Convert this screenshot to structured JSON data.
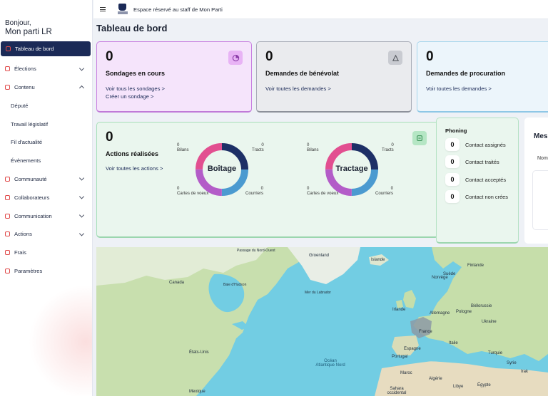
{
  "sidebar": {
    "greeting": "Bonjour,",
    "party_name": "Mon parti LR",
    "items": [
      {
        "label": "Tableau de bord",
        "active": true,
        "icon": "dashboard-icon"
      },
      {
        "label": "Élections",
        "expand": "down",
        "icon": "ballot-icon"
      },
      {
        "label": "Contenu",
        "expand": "up",
        "icon": "person-icon"
      },
      {
        "label": "Député",
        "sub": true
      },
      {
        "label": "Travail législatif",
        "sub": true
      },
      {
        "label": "Fil d'actualité",
        "sub": true
      },
      {
        "label": "Évènements",
        "sub": true
      },
      {
        "label": "Communauté",
        "expand": "down",
        "icon": "megaphone-icon"
      },
      {
        "label": "Collaborateurs",
        "expand": "down",
        "icon": "megaphone-icon"
      },
      {
        "label": "Communication",
        "expand": "down",
        "icon": "chat-icon"
      },
      {
        "label": "Actions",
        "expand": "down",
        "icon": "grid-icon"
      },
      {
        "label": "Frais",
        "icon": "wallet-icon"
      },
      {
        "label": "Paramètres",
        "icon": "gear-icon"
      }
    ]
  },
  "topbar": {
    "title": "Espace réservé au staff de Mon Parti",
    "logo_text": "Mon Parti"
  },
  "page_title": "Tableau de bord",
  "cards": {
    "sondages": {
      "count": "0",
      "title": "Sondages en cours",
      "link1": "Voir tous les sondages >",
      "link2": "Créer un sondage >"
    },
    "benevolat": {
      "count": "0",
      "title": "Demandes de bénévolat",
      "link1": "Voir toutes les demandes >"
    },
    "procuration": {
      "count": "0",
      "title": "Demandes de procuration",
      "link1": "Voir toutes les demandes >"
    },
    "actions": {
      "count": "0",
      "title": "Actions réalisées",
      "link1": "Voir toutes les actions >",
      "donuts": [
        {
          "name": "Boîtage",
          "tl_val": "0",
          "tl_lbl": "Bilans",
          "tr_val": "0",
          "tr_lbl": "Tracts",
          "bl_val": "0",
          "bl_lbl": "Cartes de voeux",
          "br_val": "0",
          "br_lbl": "Courriers"
        },
        {
          "name": "Tractage",
          "tl_val": "0",
          "tl_lbl": "Bilans",
          "tr_val": "0",
          "tr_lbl": "Tracts",
          "bl_val": "0",
          "bl_lbl": "Cartes de voeux",
          "br_val": "0",
          "br_lbl": "Courriers"
        }
      ]
    },
    "phoning": {
      "title": "Phoning",
      "rows": [
        {
          "value": "0",
          "label": "Contact assignés"
        },
        {
          "value": "0",
          "label": "Contact traités"
        },
        {
          "value": "0",
          "label": "Contact acceptés"
        },
        {
          "value": "0",
          "label": "Contact non crées"
        }
      ]
    },
    "mes": {
      "title": "Mes",
      "sub": "Nom"
    }
  },
  "map": {
    "labels": {
      "canada": "Canada",
      "groenland": "Groenland",
      "islande": "Islande",
      "etats_unis": "États-Unis",
      "mexique": "Mexique",
      "baie_hudson": "Baie d'Hudson",
      "mer_labrador": "Mer du Labrador",
      "ocean": "Océan Atlantique Nord",
      "passage": "Passage du Nord-Ouest",
      "finlande": "Finlande",
      "suede": "Suède",
      "norvege": "Norvège",
      "irlande": "Irlande",
      "allemagne": "Allemagne",
      "pologne": "Pologne",
      "bielorussie": "Biélorussie",
      "ukraine": "Ukraine",
      "france": "France",
      "espagne": "Espagne",
      "portugal": "Portugal",
      "italie": "Italie",
      "turquie": "Turquie",
      "maroc": "Maroc",
      "algerie": "Algérie",
      "libye": "Libye",
      "egypte": "Égypte",
      "syrie": "Syrie",
      "irak": "Irak",
      "sahara": "Sahara occidental"
    }
  },
  "colors": {
    "nav_active": "#1b2a57",
    "donut_navy": "#1d2f66",
    "donut_blue": "#4b9ad0",
    "donut_purple": "#b35cc8",
    "donut_pink": "#e24f90"
  }
}
